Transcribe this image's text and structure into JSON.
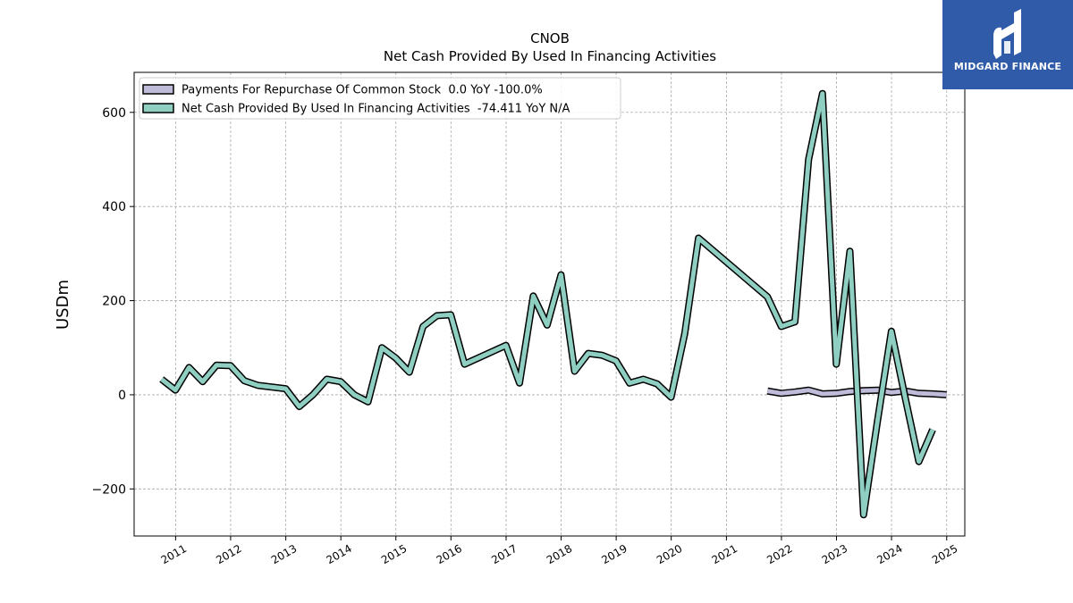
{
  "logo": {
    "text": "MIDGARD FINANCE"
  },
  "chart_data": {
    "type": "line",
    "title": "CNOB",
    "subtitle": "Net Cash Provided By Used In Financing Activities",
    "ylabel": "USDm",
    "xlabel": "",
    "xlim": [
      "2010-04-01",
      "2025-05-01"
    ],
    "ylim": [
      -300,
      685
    ],
    "yticks": [
      -200,
      0,
      200,
      400,
      600
    ],
    "ytick_labels": [
      "−200",
      "0",
      "200",
      "400",
      "600"
    ],
    "xticks": [
      "2011-01-01",
      "2012-01-01",
      "2013-01-01",
      "2014-01-01",
      "2015-01-01",
      "2016-01-01",
      "2017-01-01",
      "2018-01-01",
      "2019-01-01",
      "2020-01-01",
      "2021-01-01",
      "2022-01-01",
      "2023-01-01",
      "2024-01-01",
      "2025-01-01"
    ],
    "xtick_labels": [
      "2011",
      "2012",
      "2013",
      "2014",
      "2015",
      "2016",
      "2017",
      "2018",
      "2019",
      "2020",
      "2021",
      "2022",
      "2023",
      "2024",
      "2025"
    ],
    "grid": true,
    "legend_position": "top-left",
    "series": [
      {
        "name": "Payments For Repurchase Of Common Stock",
        "legend_label": "Payments For Repurchase Of Common Stock  0.0 YoY -100.0%",
        "color": "#bfbcd9",
        "x": [
          "2021-09-30",
          "2021-12-31",
          "2022-03-31",
          "2022-06-30",
          "2022-09-30",
          "2022-12-31",
          "2023-03-31",
          "2023-06-30",
          "2023-09-30",
          "2023-12-31",
          "2024-03-31",
          "2024-06-30",
          "2024-09-30",
          "2024-12-31"
        ],
        "values": [
          8,
          3,
          6,
          10,
          2,
          3,
          7,
          9,
          10,
          5,
          8,
          3,
          2,
          0
        ]
      },
      {
        "name": "Net Cash Provided By Used In Financing Activities",
        "legend_label": "Net Cash Provided By Used In Financing Activities  -74.411 YoY N/A",
        "color": "#8ecfc2",
        "x": [
          "2010-09-30",
          "2010-12-31",
          "2011-03-31",
          "2011-06-30",
          "2011-09-30",
          "2011-12-31",
          "2012-03-31",
          "2012-06-30",
          "2012-12-31",
          "2013-03-31",
          "2013-06-30",
          "2013-09-30",
          "2013-12-31",
          "2014-03-31",
          "2014-06-30",
          "2014-09-30",
          "2014-12-31",
          "2015-03-31",
          "2015-06-30",
          "2015-09-30",
          "2015-12-31",
          "2016-03-31",
          "2016-12-31",
          "2017-03-31",
          "2017-06-30",
          "2017-09-30",
          "2017-12-31",
          "2018-03-31",
          "2018-06-30",
          "2018-09-30",
          "2018-12-31",
          "2019-03-31",
          "2019-06-30",
          "2019-09-30",
          "2019-12-31",
          "2020-03-31",
          "2020-06-30",
          "2021-09-30",
          "2021-12-31",
          "2022-03-31",
          "2022-06-30",
          "2022-09-30",
          "2022-12-31",
          "2023-03-31",
          "2023-06-30",
          "2023-09-30",
          "2023-12-31",
          "2024-03-31",
          "2024-06-30",
          "2024-09-30"
        ],
        "values": [
          33,
          10,
          58,
          28,
          63,
          62,
          30,
          20,
          13,
          -25,
          0,
          33,
          28,
          0,
          -15,
          100,
          78,
          48,
          145,
          168,
          170,
          65,
          105,
          25,
          210,
          148,
          255,
          50,
          88,
          84,
          72,
          25,
          33,
          23,
          -5,
          130,
          333,
          208,
          145,
          155,
          500,
          640,
          65,
          305,
          -255,
          -55,
          135,
          -5,
          -142,
          -74
        ]
      }
    ]
  }
}
